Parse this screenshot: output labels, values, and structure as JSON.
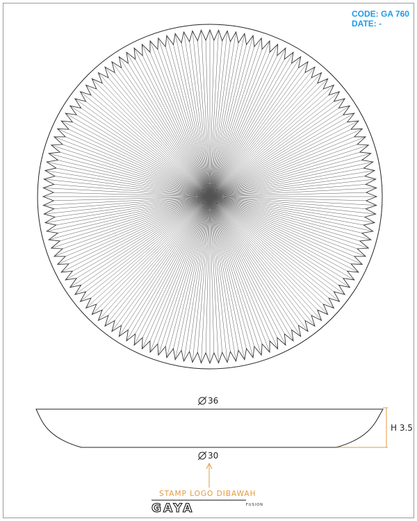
{
  "header": {
    "code": "CODE: GA 760",
    "date": "DATE: -"
  },
  "plate_top_view": {
    "ray_count": 240,
    "stroke_color": "#555555"
  },
  "profile": {
    "top_diameter": "36",
    "bottom_diameter": "30",
    "height": "H 3.5",
    "dimension_color": "#e39a3c"
  },
  "stamp": {
    "label": "STAMP LOGO DIBAWAH"
  },
  "logo": {
    "name": "GAYA",
    "subtitle": "FUSION"
  }
}
